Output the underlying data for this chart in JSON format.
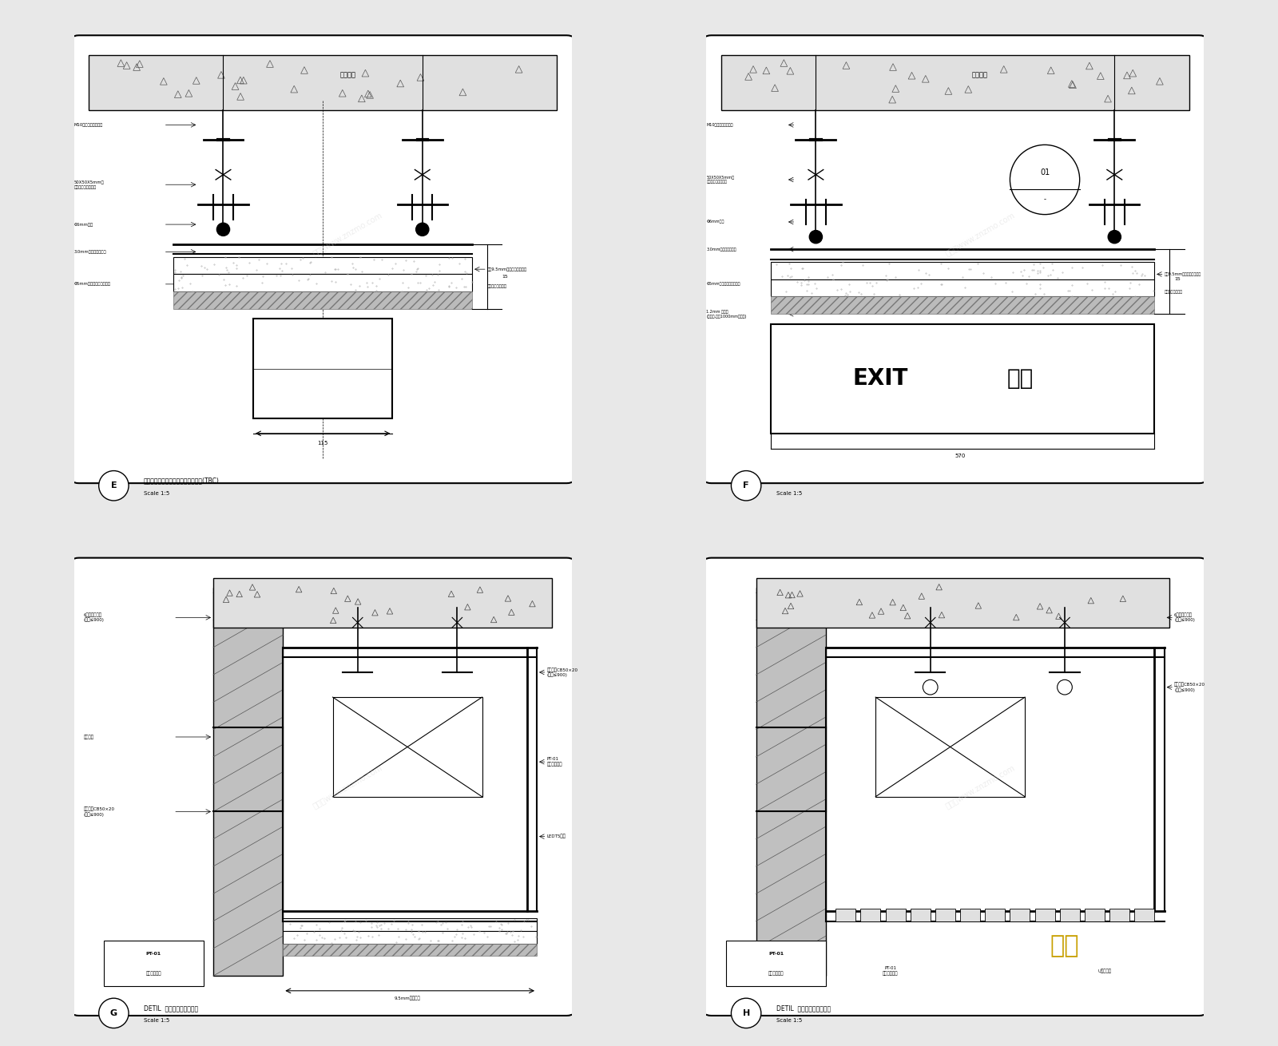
{
  "bg_color": "#e8e8e8",
  "panel_bg": "#ffffff",
  "border_color": "#000000",
  "title_e": "标准石膏板天花安全出口标志剖面图(TBC)",
  "title_f": "",
  "title_g": "DETIL  天花灯光槽通用详图",
  "title_h": "DETIL  天花灯光槽通用详图",
  "scale": "Scale 1:5",
  "label_e": "E",
  "label_f": "F",
  "label_g": "G",
  "label_h": "H",
  "watermark": "知末网www.znzmo.com",
  "watermark2": "知末"
}
